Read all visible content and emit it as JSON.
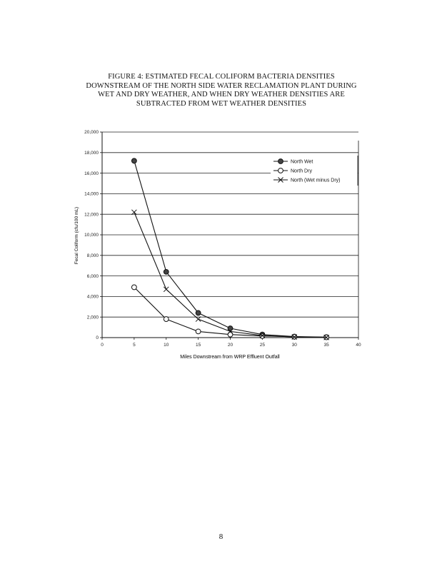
{
  "chart_data": {
    "type": "line",
    "title_lines": [
      "FIGURE 4:  ESTIMATED FECAL COLIFORM BACTERIA DENSITIES",
      "DOWNSTREAM OF THE NORTH SIDE WATER RECLAMATION PLANT DURING",
      "WET AND DRY WEATHER, AND WHEN DRY WEATHER DENSITIES ARE",
      "SUBTRACTED FROM WET WEATHER DENSITIES"
    ],
    "xlabel": "Miles Downstream from WRP Effluent Outfall",
    "ylabel": "Fecal Coliform (cfu/100 mL)",
    "xlim": [
      0,
      40
    ],
    "ylim": [
      0,
      20000
    ],
    "x_ticks": [
      0,
      5,
      10,
      15,
      20,
      25,
      30,
      35,
      40
    ],
    "y_ticks": [
      0,
      2000,
      4000,
      6000,
      8000,
      10000,
      12000,
      14000,
      16000,
      18000,
      20000
    ],
    "y_tick_labels": [
      "0",
      "2,000",
      "4,000",
      "6,000",
      "8,000",
      "10,000",
      "12,000",
      "14,000",
      "16,000",
      "18,000",
      "20,000"
    ],
    "grid": "horizontal",
    "legend_position": "top-right",
    "series": [
      {
        "name": "North Wet",
        "marker": "filled-circle",
        "x": [
          5,
          10,
          15,
          20,
          25,
          30,
          35
        ],
        "y": [
          17200,
          6400,
          2400,
          900,
          300,
          100,
          50
        ]
      },
      {
        "name": "North Dry",
        "marker": "open-circle",
        "x": [
          5,
          10,
          15,
          20,
          25,
          30,
          35
        ],
        "y": [
          4900,
          1800,
          600,
          300,
          150,
          80,
          30
        ]
      },
      {
        "name": "North (Wet minus Dry)",
        "marker": "x",
        "x": [
          5,
          10,
          15,
          20,
          25,
          30,
          35
        ],
        "y": [
          12200,
          4700,
          1800,
          600,
          200,
          60,
          20
        ]
      }
    ]
  },
  "page_number": "8"
}
